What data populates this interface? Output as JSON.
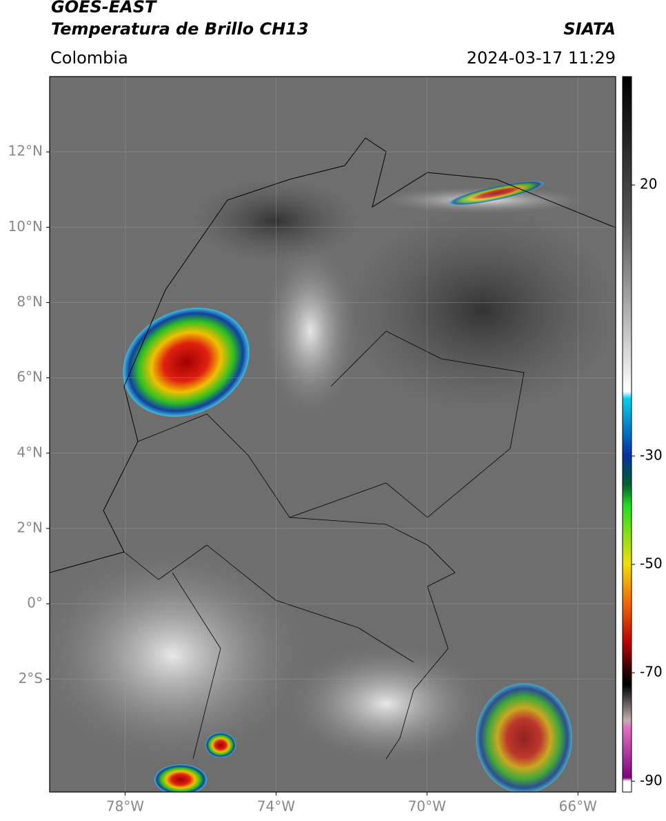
{
  "header": {
    "title": "GOES-EAST",
    "subtitle": "Temperatura de Brillo CH13",
    "source": "SIATA",
    "region": "Colombia",
    "datetime": "2024-03-17 11:29"
  },
  "map": {
    "lonlim": [
      -80,
      -65
    ],
    "latlim": [
      -5,
      14
    ],
    "lon_ticks": [
      {
        "value": -78,
        "label": "78°W"
      },
      {
        "value": -74,
        "label": "74°W"
      },
      {
        "value": -70,
        "label": "70°W"
      },
      {
        "value": -66,
        "label": "66°W"
      }
    ],
    "lat_ticks": [
      {
        "value": 12,
        "label": "12°N"
      },
      {
        "value": 10,
        "label": "10°N"
      },
      {
        "value": 8,
        "label": "8°N"
      },
      {
        "value": 6,
        "label": "6°N"
      },
      {
        "value": 4,
        "label": "4°N"
      },
      {
        "value": 2,
        "label": "2°N"
      },
      {
        "value": 0,
        "label": "0°"
      },
      {
        "value": -2,
        "label": "2°S"
      }
    ]
  },
  "colorbar": {
    "lim": [
      -92,
      40
    ],
    "ticks": [
      20,
      -30,
      -50,
      -70,
      -90
    ]
  }
}
